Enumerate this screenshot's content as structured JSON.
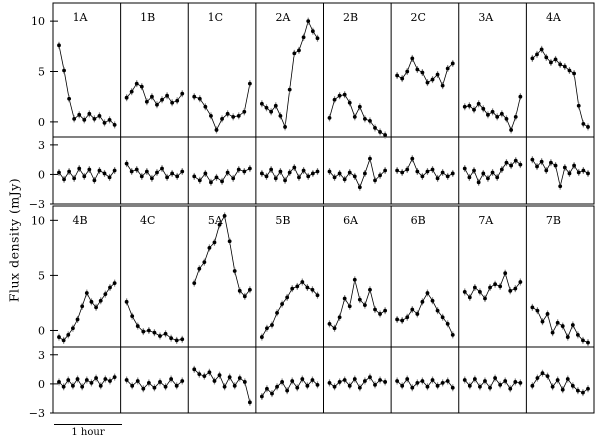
{
  "y_axis_label": "Flux density (mJy)",
  "scale_bar_label": "1 hour",
  "chart_data": [
    {
      "type": "scatter",
      "row": "top",
      "ylim": [
        -1.5,
        11.8
      ],
      "yticks": [
        0,
        5,
        10
      ],
      "resid_ylim": [
        -3,
        3.8
      ],
      "resid_yticks": [
        -3,
        0,
        3
      ],
      "panels": [
        {
          "label": "1A",
          "values": [
            7.6,
            5.1,
            2.3,
            0.3,
            0.7,
            0.2,
            0.8,
            0.3,
            0.6,
            -0.1,
            0.2,
            -0.3
          ],
          "residuals": [
            0.2,
            -0.5,
            0.3,
            -0.4,
            0.6,
            -0.2,
            0.5,
            -0.6,
            0.4,
            0.1,
            -0.3,
            0.4
          ]
        },
        {
          "label": "1B",
          "values": [
            2.4,
            3.0,
            3.8,
            3.5,
            2.0,
            2.5,
            1.7,
            2.2,
            2.6,
            1.9,
            2.1,
            2.8
          ],
          "residuals": [
            1.1,
            0.3,
            0.5,
            -0.2,
            0.3,
            -0.4,
            0.2,
            0.6,
            -0.3,
            0.1,
            -0.2,
            0.3
          ]
        },
        {
          "label": "1C",
          "values": [
            2.5,
            2.3,
            1.5,
            0.6,
            -0.8,
            0.3,
            0.8,
            0.5,
            0.6,
            1.0,
            3.8
          ],
          "residuals": [
            -0.2,
            -0.6,
            0.1,
            -0.8,
            -0.3,
            -0.7,
            0.2,
            -0.4,
            0.5,
            0.3,
            0.6
          ]
        },
        {
          "label": "2A",
          "values": [
            1.8,
            1.4,
            1.0,
            1.6,
            0.6,
            -0.5,
            3.2,
            6.8,
            7.1,
            8.4,
            10.0,
            9.0,
            8.3
          ],
          "residuals": [
            0.1,
            -0.2,
            0.5,
            -0.4,
            0.3,
            -0.6,
            0.2,
            0.7,
            -0.3,
            0.4,
            -0.2,
            0.1,
            0.3
          ]
        },
        {
          "label": "2B",
          "values": [
            0.4,
            2.2,
            2.6,
            2.7,
            1.9,
            0.5,
            1.5,
            0.3,
            0.1,
            -0.6,
            -1.0,
            -1.3
          ],
          "residuals": [
            0.3,
            -0.3,
            0.1,
            -0.5,
            0.2,
            -0.2,
            -1.3,
            0.1,
            1.6,
            -0.6,
            -0.1,
            0.4
          ]
        },
        {
          "label": "2C",
          "values": [
            4.6,
            4.3,
            5.0,
            6.3,
            5.2,
            4.9,
            3.9,
            4.2,
            4.7,
            3.6,
            5.3,
            5.8
          ],
          "residuals": [
            0.4,
            0.2,
            0.5,
            1.6,
            0.3,
            -0.2,
            0.3,
            0.5,
            -0.4,
            0.2,
            -0.2,
            0.1
          ]
        },
        {
          "label": "3A",
          "values": [
            1.5,
            1.6,
            1.2,
            1.8,
            1.3,
            0.7,
            1.0,
            0.5,
            0.8,
            0.3,
            -0.8,
            0.5,
            2.5
          ],
          "residuals": [
            0.6,
            -0.3,
            0.4,
            -0.8,
            0.1,
            -0.4,
            0.2,
            -0.3,
            0.5,
            1.2,
            0.9,
            1.4,
            1.0
          ]
        },
        {
          "label": "4A",
          "values": [
            6.3,
            6.7,
            7.2,
            6.4,
            5.9,
            6.2,
            5.7,
            5.5,
            5.1,
            4.8,
            1.6,
            -0.2,
            -0.5
          ],
          "residuals": [
            1.5,
            0.8,
            1.3,
            0.4,
            1.2,
            0.9,
            -1.2,
            0.7,
            0.1,
            0.9,
            0.2,
            0.4,
            0.1
          ]
        }
      ]
    },
    {
      "type": "scatter",
      "row": "bottom",
      "ylim": [
        -1.5,
        11.3
      ],
      "yticks": [
        0,
        5,
        10
      ],
      "resid_ylim": [
        -3,
        3.8
      ],
      "resid_yticks": [
        -3,
        0,
        3
      ],
      "panels": [
        {
          "label": "4B",
          "values": [
            -0.6,
            -0.9,
            -0.4,
            0.2,
            1.0,
            2.2,
            3.4,
            2.6,
            2.1,
            2.7,
            3.3,
            3.9,
            4.3
          ],
          "residuals": [
            0.2,
            -0.3,
            0.4,
            -0.2,
            0.5,
            -0.3,
            0.4,
            0.1,
            0.6,
            -0.2,
            0.5,
            0.3,
            0.7
          ]
        },
        {
          "label": "4C",
          "values": [
            2.6,
            1.3,
            0.4,
            -0.1,
            0.0,
            -0.2,
            -0.5,
            -0.3,
            -0.7,
            -0.9,
            -0.8
          ],
          "residuals": [
            0.4,
            -0.2,
            0.3,
            -0.5,
            0.1,
            -0.4,
            0.2,
            -0.3,
            0.5,
            -0.2,
            0.3
          ]
        },
        {
          "label": "5A",
          "values": [
            4.3,
            5.6,
            6.2,
            7.5,
            8.0,
            9.6,
            10.4,
            8.1,
            5.4,
            3.6,
            3.1,
            3.7
          ],
          "residuals": [
            1.5,
            1.0,
            0.8,
            1.2,
            0.3,
            0.9,
            -0.3,
            0.7,
            -0.2,
            0.6,
            0.2,
            -1.9
          ]
        },
        {
          "label": "5B",
          "values": [
            -0.6,
            0.2,
            0.5,
            1.6,
            2.4,
            3.0,
            3.8,
            4.0,
            4.4,
            3.9,
            3.7,
            3.2
          ],
          "residuals": [
            -1.3,
            -0.5,
            -1.0,
            -0.3,
            0.2,
            -0.7,
            0.3,
            -0.4,
            0.5,
            -0.2,
            0.4,
            -0.1
          ]
        },
        {
          "label": "6A",
          "values": [
            0.6,
            0.2,
            1.2,
            2.9,
            2.2,
            4.6,
            2.8,
            2.3,
            3.7,
            1.9,
            1.5,
            1.8
          ],
          "residuals": [
            0.1,
            -0.3,
            0.2,
            0.4,
            -0.2,
            0.5,
            -0.4,
            0.3,
            0.7,
            -0.1,
            0.4,
            0.2
          ]
        },
        {
          "label": "6B",
          "values": [
            1.0,
            0.9,
            1.2,
            1.9,
            1.5,
            2.6,
            3.4,
            2.7,
            1.8,
            1.2,
            0.6,
            -0.4
          ],
          "residuals": [
            0.3,
            -0.2,
            0.5,
            -0.4,
            0.1,
            0.3,
            -0.3,
            0.4,
            -0.2,
            0.1,
            0.3,
            -0.4
          ]
        },
        {
          "label": "7A",
          "values": [
            3.5,
            3.0,
            3.9,
            3.5,
            2.9,
            3.9,
            4.2,
            4.0,
            5.2,
            3.6,
            3.8,
            4.4
          ],
          "residuals": [
            0.4,
            -0.2,
            0.5,
            -0.3,
            0.3,
            -0.4,
            0.6,
            -0.1,
            0.3,
            -0.5,
            0.2,
            0.1
          ]
        },
        {
          "label": "7B",
          "values": [
            2.1,
            1.8,
            0.8,
            1.5,
            -0.2,
            0.7,
            0.4,
            -0.6,
            0.5,
            -0.4,
            -0.9,
            -1.1
          ],
          "residuals": [
            -0.2,
            0.6,
            1.1,
            0.8,
            -0.3,
            0.4,
            -0.6,
            0.5,
            -0.2,
            -0.7,
            -0.9,
            -0.5
          ]
        }
      ]
    }
  ]
}
